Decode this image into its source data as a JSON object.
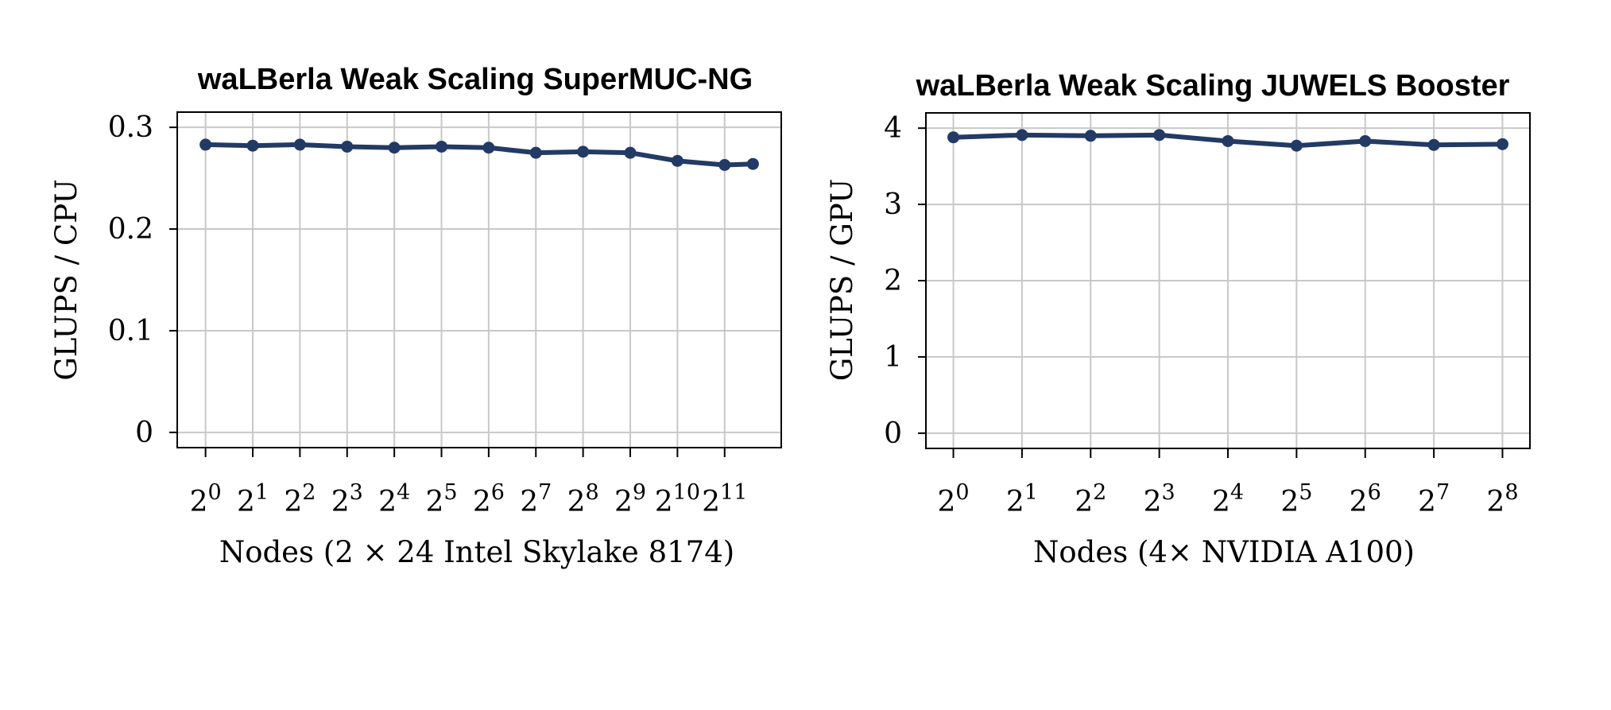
{
  "colors": {
    "series": "#223a64",
    "grid": "#c8c8c8",
    "axis": "#000000"
  },
  "chart_data": [
    {
      "type": "line",
      "title": "waLBerla Weak Scaling SuperMUC-NG",
      "xlabel": "Nodes (2 × 24 Intel Skylake 8174)",
      "ylabel": "GLUPS / CPU",
      "x_base": "2",
      "x_ticks": [
        "0",
        "1",
        "2",
        "3",
        "4",
        "5",
        "6",
        "7",
        "8",
        "9",
        "10",
        "11"
      ],
      "x": [
        0,
        1,
        2,
        3,
        4,
        5,
        6,
        7,
        8,
        9,
        10,
        11,
        11.6
      ],
      "y_ticks": [
        "0",
        "0.1",
        "0.2",
        "0.3"
      ],
      "y_tick_values": [
        0,
        0.1,
        0.2,
        0.3
      ],
      "ylim": [
        -0.015,
        0.315
      ],
      "xlim": [
        -0.6,
        12.2
      ],
      "grid": true,
      "series": [
        {
          "values": [
            0.283,
            0.282,
            0.283,
            0.281,
            0.28,
            0.281,
            0.28,
            0.275,
            0.276,
            0.275,
            0.267,
            0.263,
            0.264
          ]
        }
      ]
    },
    {
      "type": "line",
      "title": "waLBerla Weak Scaling JUWELS Booster",
      "xlabel": "Nodes (4× NVIDIA A100)",
      "ylabel": "GLUPS / GPU",
      "x_base": "2",
      "x_ticks": [
        "0",
        "1",
        "2",
        "3",
        "4",
        "5",
        "6",
        "7",
        "8"
      ],
      "x": [
        0,
        1,
        2,
        3,
        4,
        5,
        6,
        7,
        8
      ],
      "y_ticks": [
        "0",
        "1",
        "2",
        "3",
        "4"
      ],
      "y_tick_values": [
        0,
        1,
        2,
        3,
        4
      ],
      "ylim": [
        -0.2,
        4.2
      ],
      "xlim": [
        -0.4,
        8.4
      ],
      "grid": true,
      "series": [
        {
          "values": [
            3.88,
            3.91,
            3.9,
            3.91,
            3.83,
            3.77,
            3.83,
            3.78,
            3.79
          ]
        }
      ]
    }
  ]
}
